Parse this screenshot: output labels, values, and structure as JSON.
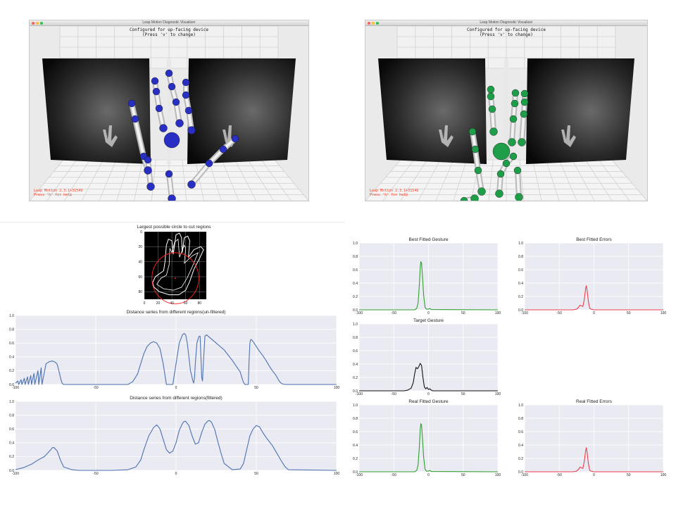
{
  "visualizer_left": {
    "window_title": "Leap Motion Diagnostic Visualizer",
    "config_line1": "Configured for up-facing device",
    "config_line2": "(Press 'v' to change)",
    "version_line1": "Leap Motion 2.3.1+31549",
    "version_line2": "Press 'h' for help",
    "joint_color": "#2a2fc4"
  },
  "visualizer_right": {
    "window_title": "Leap Motion Diagnostic Visualizer",
    "config_line1": "Configured for up-facing device",
    "config_line2": "(Press 'v' to change)",
    "version_line1": "Leap Motion 2.3.1+31549",
    "version_line2": "Press 'h' for help",
    "joint_color": "#1f9e4a"
  },
  "chart_data": [
    {
      "id": "circle",
      "type": "heatmap",
      "title": "Largest possible circle to cut regions",
      "xticks": [
        0,
        20,
        40,
        60,
        80
      ],
      "yticks": [
        0,
        20,
        40,
        60,
        80
      ],
      "xlim": [
        0,
        90
      ],
      "ylim": [
        0,
        90
      ],
      "background": "#000000",
      "outline_color": "#ffffff",
      "circle_color": "#ff2020",
      "circle_center": [
        45,
        62
      ],
      "circle_radius": 34
    },
    {
      "id": "unfiltered",
      "type": "line",
      "title": "Distance series from different regions(un-filtered)",
      "xlim": [
        -100,
        100
      ],
      "ylim": [
        0,
        1.0
      ],
      "xticks": [
        -100,
        -50,
        0,
        50,
        100
      ],
      "yticks": [
        0.0,
        0.2,
        0.4,
        0.6,
        0.8,
        1.0
      ],
      "color": "#4c72b0",
      "x": [
        -100,
        -98.5,
        -98,
        -96.5,
        -96,
        -94.5,
        -94,
        -92.5,
        -92,
        -90.5,
        -90,
        -88.5,
        -88,
        -86,
        -85.5,
        -84,
        -83.5,
        -81,
        -79,
        -77,
        -75,
        -74,
        -73,
        -72,
        -71,
        -70,
        -60,
        -40,
        -30,
        -27,
        -24,
        -22,
        -20,
        -18,
        -16,
        -14,
        -12,
        -10,
        -8,
        -6,
        -2,
        0,
        2,
        4,
        5,
        6,
        7,
        8,
        9,
        10,
        10.5,
        11,
        11.5,
        12,
        13,
        14,
        14.5,
        15,
        15.5,
        16,
        16.5,
        17,
        18,
        19,
        20,
        25,
        30,
        35,
        40,
        41,
        42,
        43,
        44,
        45,
        45.5,
        46,
        46.5,
        47,
        48,
        50,
        52,
        54,
        56,
        58,
        60,
        62,
        64,
        65,
        66,
        68,
        70,
        100
      ],
      "y": [
        0.02,
        0.05,
        0,
        0.07,
        0,
        0.09,
        0,
        0.11,
        0,
        0.13,
        0,
        0.16,
        0,
        0.2,
        0,
        0.24,
        0,
        0.3,
        0.33,
        0.34,
        0.32,
        0.29,
        0.2,
        0.1,
        0.02,
        0,
        0,
        0,
        0,
        0.04,
        0.15,
        0.3,
        0.45,
        0.55,
        0.6,
        0.62,
        0.6,
        0.52,
        0.3,
        0,
        0,
        0.3,
        0.6,
        0.72,
        0.74,
        0.72,
        0.6,
        0.4,
        0.2,
        0.1,
        0.05,
        0.02,
        0.1,
        0.3,
        0.6,
        0.68,
        0.7,
        0.7,
        0.4,
        0.1,
        0.05,
        0.3,
        0.7,
        0.72,
        0.7,
        0.6,
        0.5,
        0.35,
        0.18,
        0.1,
        0.03,
        0,
        0,
        0,
        0.35,
        0.6,
        0.65,
        0.65,
        0.62,
        0.55,
        0.48,
        0.42,
        0.35,
        0.27,
        0.2,
        0.14,
        0.06,
        0.03,
        0.01,
        0,
        0,
        0
      ]
    },
    {
      "id": "filtered",
      "type": "line",
      "title": "Distance series from different regions(filtered)",
      "xlim": [
        -100,
        100
      ],
      "ylim": [
        0,
        1.0
      ],
      "xticks": [
        -100,
        -50,
        0,
        50,
        100
      ],
      "yticks": [
        0.0,
        0.2,
        0.4,
        0.6,
        0.8,
        1.0
      ],
      "color": "#4c72b0",
      "x": [
        -100,
        -95,
        -90,
        -86,
        -82,
        -80,
        -78,
        -77,
        -76,
        -74,
        -72,
        -70,
        -65,
        -60,
        -40,
        -30,
        -25,
        -22,
        -20,
        -17,
        -14,
        -12,
        -10,
        -8,
        -6,
        -4,
        -2,
        0,
        2,
        4,
        5,
        6,
        8,
        10,
        12,
        14,
        16,
        18,
        20,
        21,
        22,
        24,
        26,
        28,
        30,
        35,
        40,
        42,
        44,
        46,
        48,
        50,
        52,
        54,
        56,
        58,
        60,
        62,
        64,
        66,
        68,
        70,
        100
      ],
      "y": [
        0.01,
        0.04,
        0.09,
        0.15,
        0.2,
        0.25,
        0.3,
        0.33,
        0.33,
        0.28,
        0.15,
        0.05,
        0.01,
        0,
        0,
        0.01,
        0.05,
        0.15,
        0.3,
        0.5,
        0.62,
        0.66,
        0.6,
        0.45,
        0.3,
        0.25,
        0.28,
        0.4,
        0.58,
        0.68,
        0.71,
        0.71,
        0.65,
        0.5,
        0.38,
        0.4,
        0.55,
        0.67,
        0.72,
        0.72,
        0.7,
        0.6,
        0.42,
        0.25,
        0.1,
        0.01,
        0.02,
        0.1,
        0.3,
        0.5,
        0.6,
        0.65,
        0.63,
        0.55,
        0.48,
        0.42,
        0.36,
        0.28,
        0.2,
        0.12,
        0.05,
        0.01,
        0
      ]
    },
    {
      "id": "best_gesture",
      "type": "line",
      "title": "Best Fitted Gesture",
      "xlim": [
        -100,
        100
      ],
      "ylim": [
        0,
        1.0
      ],
      "xticks": [
        -100,
        -50,
        0,
        50,
        100
      ],
      "yticks": [
        0.0,
        0.2,
        0.4,
        0.6,
        0.8,
        1.0
      ],
      "color": "#2ca02c",
      "x": [
        -100,
        -20,
        -17,
        -15,
        -13,
        -12,
        -11,
        -10,
        -9,
        -7,
        -5,
        -3,
        0,
        2,
        4,
        100
      ],
      "y": [
        0,
        0,
        0.02,
        0.1,
        0.4,
        0.62,
        0.72,
        0.7,
        0.55,
        0.22,
        0.04,
        0.01,
        0.01,
        0.02,
        0.005,
        0
      ]
    },
    {
      "id": "best_errors",
      "type": "line",
      "title": "Best Fitted Errors",
      "xlim": [
        -100,
        100
      ],
      "ylim": [
        0,
        1.0
      ],
      "xticks": [
        -100,
        -50,
        0,
        50,
        100
      ],
      "yticks": [
        0.0,
        0.2,
        0.4,
        0.6,
        0.8,
        1.0
      ],
      "color": "#e8414d",
      "x": [
        -100,
        -30,
        -25,
        -22,
        -20,
        -18,
        -16,
        -14,
        -12,
        -11,
        -10,
        -8,
        -6,
        -4,
        0,
        100
      ],
      "y": [
        0,
        0,
        0.01,
        0.04,
        0.07,
        0.06,
        0.05,
        0.15,
        0.32,
        0.36,
        0.3,
        0.12,
        0.02,
        0.01,
        0,
        0
      ]
    },
    {
      "id": "target_gesture",
      "type": "line",
      "title": "Target Gesture",
      "xlim": [
        -100,
        100
      ],
      "ylim": [
        0,
        1.0
      ],
      "xticks": [
        -100,
        -50,
        0,
        50,
        100
      ],
      "yticks": [
        0.0,
        0.2,
        0.4,
        0.6,
        0.8,
        1.0
      ],
      "color": "#111111",
      "x": [
        -100,
        -35,
        -30,
        -25,
        -22,
        -20,
        -18,
        -16,
        -14,
        -12,
        -10,
        -8,
        -6,
        -4,
        -2,
        0,
        2,
        4,
        6,
        100
      ],
      "y": [
        0,
        0,
        0.01,
        0.04,
        0.12,
        0.25,
        0.35,
        0.33,
        0.36,
        0.41,
        0.38,
        0.2,
        0.06,
        0.03,
        0.05,
        0.02,
        0.03,
        0.01,
        0,
        0
      ]
    },
    {
      "id": "real_gesture",
      "type": "line",
      "title": "Real Fitted Gesture",
      "xlim": [
        -100,
        100
      ],
      "ylim": [
        0,
        1.0
      ],
      "xticks": [
        -100,
        -50,
        0,
        50,
        100
      ],
      "yticks": [
        0.0,
        0.2,
        0.4,
        0.6,
        0.8,
        1.0
      ],
      "color": "#2ca02c",
      "x": [
        -100,
        -20,
        -17,
        -15,
        -13,
        -12,
        -11,
        -10,
        -9,
        -7,
        -5,
        -3,
        0,
        2,
        4,
        100
      ],
      "y": [
        0,
        0,
        0.02,
        0.1,
        0.4,
        0.62,
        0.72,
        0.7,
        0.55,
        0.22,
        0.04,
        0.01,
        0.01,
        0.02,
        0.005,
        0
      ]
    },
    {
      "id": "real_errors",
      "type": "line",
      "title": "Real Fitted Errors",
      "xlim": [
        -100,
        100
      ],
      "ylim": [
        0,
        1.0
      ],
      "xticks": [
        -100,
        -50,
        0,
        50,
        100
      ],
      "yticks": [
        0.0,
        0.2,
        0.4,
        0.6,
        0.8,
        1.0
      ],
      "color": "#e8414d",
      "x": [
        -100,
        -30,
        -25,
        -22,
        -20,
        -18,
        -16,
        -14,
        -12,
        -11,
        -10,
        -8,
        -6,
        -4,
        0,
        100
      ],
      "y": [
        0,
        0,
        0.01,
        0.04,
        0.07,
        0.06,
        0.05,
        0.15,
        0.32,
        0.36,
        0.3,
        0.12,
        0.02,
        0.01,
        0,
        0
      ]
    }
  ]
}
